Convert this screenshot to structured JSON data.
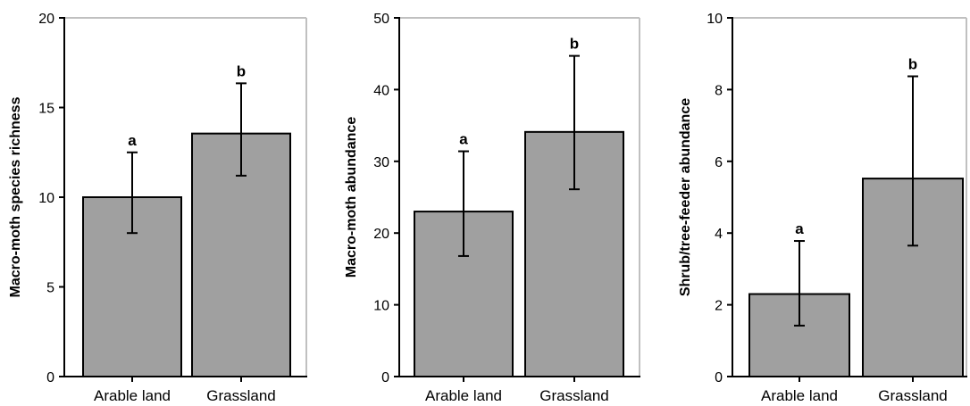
{
  "chart_data": [
    {
      "type": "bar",
      "categories": [
        "Arable land",
        "Grassland"
      ],
      "values": [
        10.0,
        13.55
      ],
      "error_low": [
        8.0,
        11.2
      ],
      "error_high": [
        12.5,
        16.35
      ],
      "letters": [
        "a",
        "b"
      ],
      "ylabel": "Macro-moth species richness",
      "ylim": [
        0,
        20
      ],
      "yticks": [
        0,
        5,
        10,
        15,
        20
      ],
      "bar_color": "#a0a0a0",
      "frame_color": "#c0c0c0"
    },
    {
      "type": "bar",
      "categories": [
        "Arable land",
        "Grassland"
      ],
      "values": [
        23.0,
        34.1
      ],
      "error_low": [
        16.8,
        26.1
      ],
      "error_high": [
        31.4,
        44.7
      ],
      "letters": [
        "a",
        "b"
      ],
      "ylabel": "Macro-moth abundance",
      "ylim": [
        0,
        50
      ],
      "yticks": [
        0,
        10,
        20,
        30,
        40,
        50
      ],
      "bar_color": "#a0a0a0",
      "frame_color": "#c0c0c0"
    },
    {
      "type": "bar",
      "categories": [
        "Arable land",
        "Grassland"
      ],
      "values": [
        2.3,
        5.52
      ],
      "error_low": [
        1.42,
        3.65
      ],
      "error_high": [
        3.78,
        8.37
      ],
      "letters": [
        "a",
        "b"
      ],
      "ylabel": "Shrub/tree-feeder abundance",
      "ylim": [
        0,
        10
      ],
      "yticks": [
        0,
        2,
        4,
        6,
        8,
        10
      ],
      "bar_color": "#a0a0a0",
      "frame_color": "#c0c0c0"
    }
  ]
}
